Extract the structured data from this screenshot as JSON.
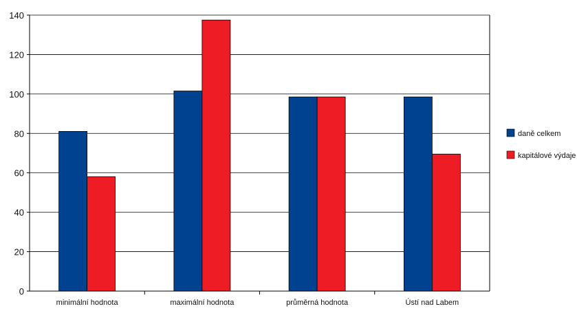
{
  "chart_data": {
    "type": "bar",
    "title": "",
    "xlabel": "",
    "ylabel": "",
    "ylim": [
      0,
      140
    ],
    "yticks": [
      0,
      20,
      40,
      60,
      80,
      100,
      120,
      140
    ],
    "grid": true,
    "legend_position": "right",
    "categories": [
      "minimální hodnota",
      "maximální hodnota",
      "průměrná hodnota",
      "Ústí nad Labem"
    ],
    "series": [
      {
        "name": "daně celkem",
        "color": "#00428F",
        "values": [
          81,
          101.5,
          98.5,
          98.5
        ]
      },
      {
        "name": "kapitálové výdaje",
        "color": "#EE1C25",
        "values": [
          58,
          137.5,
          98.5,
          69.5
        ]
      }
    ]
  }
}
